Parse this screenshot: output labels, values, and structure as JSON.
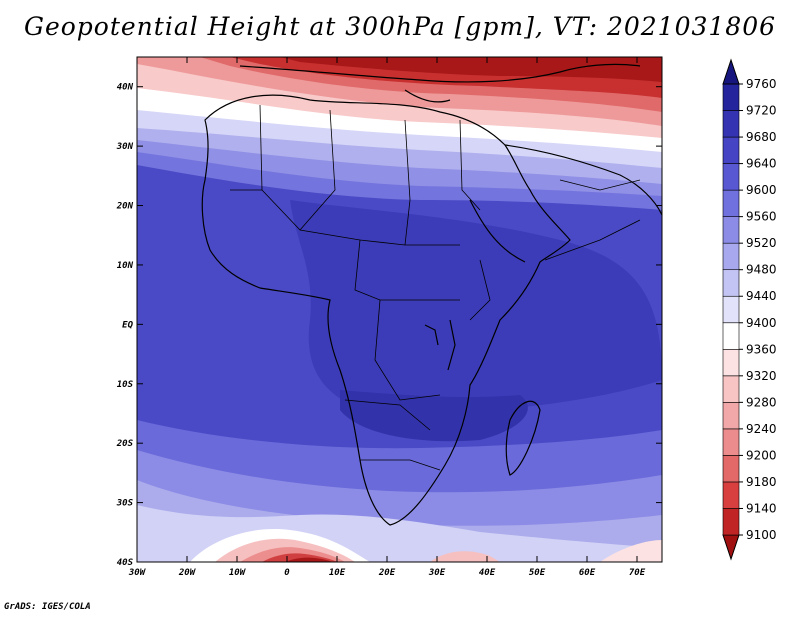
{
  "title": "Geopotential Height at 300hPa [gpm], VT: 2021031806",
  "footer": "GrADS: IGES/COLA",
  "map": {
    "lon_range": [
      -30,
      75
    ],
    "lat_range": [
      -40,
      45
    ],
    "lon_ticks": [
      {
        "value": -30,
        "label": "30W"
      },
      {
        "value": -20,
        "label": "20W"
      },
      {
        "value": -10,
        "label": "10W"
      },
      {
        "value": 0,
        "label": "0"
      },
      {
        "value": 10,
        "label": "10E"
      },
      {
        "value": 20,
        "label": "20E"
      },
      {
        "value": 30,
        "label": "30E"
      },
      {
        "value": 40,
        "label": "40E"
      },
      {
        "value": 50,
        "label": "50E"
      },
      {
        "value": 60,
        "label": "60E"
      },
      {
        "value": 70,
        "label": "70E"
      }
    ],
    "lat_ticks": [
      {
        "value": 40,
        "label": "40N"
      },
      {
        "value": 30,
        "label": "30N"
      },
      {
        "value": 20,
        "label": "20N"
      },
      {
        "value": 10,
        "label": "10N"
      },
      {
        "value": 0,
        "label": "EQ"
      },
      {
        "value": -10,
        "label": "10S"
      },
      {
        "value": -20,
        "label": "20S"
      },
      {
        "value": -30,
        "label": "30S"
      },
      {
        "value": -40,
        "label": "40S"
      }
    ]
  },
  "colorbar": {
    "levels": [
      9100,
      9140,
      9180,
      9200,
      9240,
      9280,
      9320,
      9360,
      9400,
      9440,
      9480,
      9520,
      9560,
      9600,
      9640,
      9680,
      9720,
      9760
    ],
    "colors": [
      "#a01010",
      "#c02424",
      "#d84040",
      "#e36868",
      "#ec8c8c",
      "#f2a8a8",
      "#f8c4c4",
      "#fce2e2",
      "#ffffff",
      "#e2e2fa",
      "#c4c4f4",
      "#a8a8ee",
      "#8c8ce6",
      "#7070de",
      "#5858d2",
      "#4444c4",
      "#3434b2",
      "#24249c",
      "#16167e"
    ]
  }
}
